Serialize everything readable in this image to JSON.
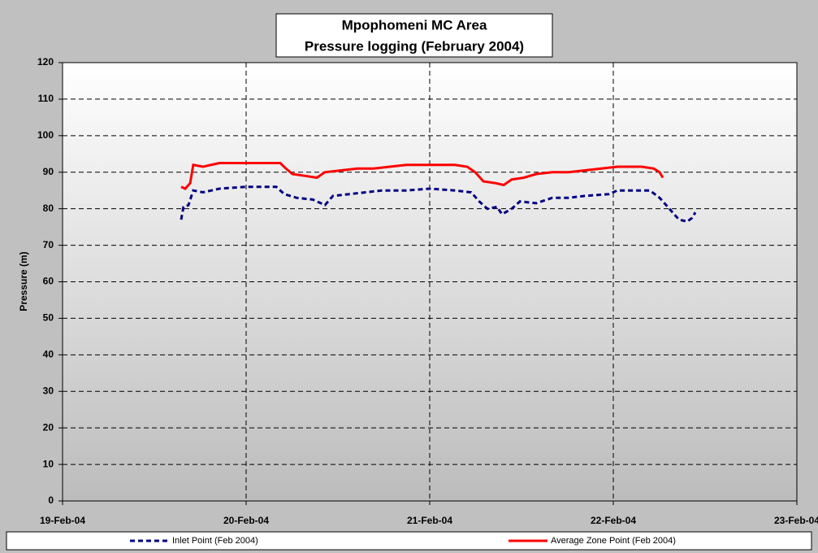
{
  "chart_data": {
    "type": "line",
    "title": "Mpophomeni MC Area",
    "subtitle": "Pressure logging (February 2004)",
    "y_label": "Pressure (m)",
    "xlim": [
      19,
      23
    ],
    "xticks": [
      {
        "value": 19,
        "label": "19-Feb-04"
      },
      {
        "value": 20,
        "label": "20-Feb-04"
      },
      {
        "value": 21,
        "label": "21-Feb-04"
      },
      {
        "value": 22,
        "label": "22-Feb-04"
      },
      {
        "value": 23,
        "label": "23-Feb-04"
      }
    ],
    "ylim": [
      0,
      120
    ],
    "yticks": [
      0,
      10,
      20,
      30,
      40,
      50,
      60,
      70,
      80,
      90,
      100,
      110,
      120
    ],
    "grid": true,
    "legend": "bottom",
    "series": [
      {
        "name": "Inlet Point (Feb 2004)",
        "color": "#000080",
        "dash": true,
        "x": [
          19.646,
          19.659,
          19.686,
          19.712,
          19.765,
          19.854,
          20.0,
          20.164,
          20.208,
          20.274,
          20.363,
          20.429,
          20.473,
          20.562,
          20.65,
          20.739,
          20.872,
          21.0,
          21.137,
          21.226,
          21.27,
          21.314,
          21.367,
          21.394,
          21.447,
          21.491,
          21.58,
          21.668,
          21.757,
          21.845,
          21.978,
          22.022,
          22.199,
          22.252,
          22.288,
          22.323,
          22.358,
          22.403,
          22.429,
          22.447
        ],
        "values": [
          77,
          80.5,
          81,
          85,
          84.5,
          85.5,
          86,
          86,
          84,
          83,
          82.5,
          81,
          83.5,
          84,
          84.5,
          85,
          85,
          85.5,
          85,
          84.5,
          82,
          80,
          80.5,
          78.5,
          80,
          82,
          81.5,
          83,
          83,
          83.5,
          84,
          85,
          85,
          83,
          81,
          79,
          77,
          76.5,
          77.5,
          79
        ]
      },
      {
        "name": "Average Zone Point (Feb 2004)",
        "color": "#ff0000",
        "dash": false,
        "x": [
          19.646,
          19.668,
          19.695,
          19.712,
          19.765,
          19.854,
          20.0,
          20.186,
          20.217,
          20.252,
          20.319,
          20.385,
          20.429,
          20.518,
          20.606,
          20.695,
          20.783,
          20.872,
          21.0,
          21.137,
          21.204,
          21.248,
          21.292,
          21.358,
          21.403,
          21.447,
          21.513,
          21.58,
          21.668,
          21.757,
          21.845,
          21.934,
          22.022,
          22.155,
          22.221,
          22.252,
          22.27
        ],
        "values": [
          86,
          85.5,
          87,
          92,
          91.5,
          92.5,
          92.5,
          92.5,
          91,
          89.5,
          89,
          88.5,
          90,
          90.5,
          91,
          91,
          91.5,
          92,
          92,
          92,
          91.5,
          90,
          87.5,
          87,
          86.5,
          88,
          88.5,
          89.5,
          90,
          90,
          90.5,
          91,
          91.5,
          91.5,
          91,
          90,
          88.5
        ]
      }
    ]
  }
}
